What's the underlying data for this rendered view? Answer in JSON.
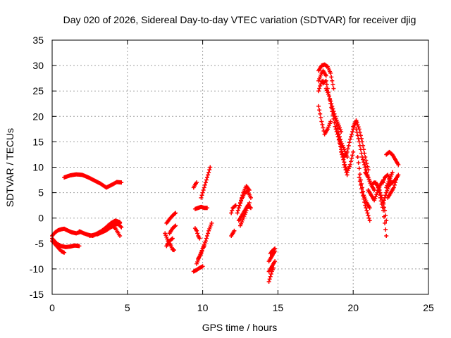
{
  "chart_data": {
    "type": "scatter",
    "title": "Day 020 of 2026, Sidereal Day-to-day VTEC variation (SDTVAR) for receiver djig",
    "xlabel": "GPS time / hours",
    "ylabel": "SDTVAR / TECUs",
    "xlim": [
      0,
      25
    ],
    "ylim": [
      -15,
      35
    ],
    "xticks": [
      0,
      5,
      10,
      15,
      20,
      25
    ],
    "yticks": [
      -15,
      -10,
      -5,
      0,
      5,
      10,
      15,
      20,
      25,
      30,
      35
    ],
    "grid": true,
    "marker": "plus",
    "color": "#ff0000",
    "series": [
      {
        "segments": [
          {
            "x": [
              0.8,
              1.2,
              1.6,
              2.0,
              2.4,
              2.8,
              3.2,
              3.6,
              4.0,
              4.3,
              4.6
            ],
            "y": [
              8.0,
              8.4,
              8.6,
              8.5,
              8.0,
              7.4,
              6.8,
              6.0,
              6.6,
              7.1,
              7.0
            ]
          },
          {
            "x": [
              0.0,
              0.2,
              0.4,
              0.6,
              0.8,
              1.0,
              1.3,
              1.6,
              1.9
            ],
            "y": [
              -3.5,
              -2.8,
              -2.4,
              -2.2,
              -2.1,
              -2.4,
              -2.8,
              -3.0,
              -2.7
            ]
          },
          {
            "x": [
              0.0,
              0.3,
              0.6,
              0.9,
              1.2,
              1.5,
              1.8
            ],
            "y": [
              -4.0,
              -5.0,
              -5.5,
              -5.7,
              -5.6,
              -5.4,
              -5.5
            ]
          },
          {
            "x": [
              0.0,
              0.3,
              0.6,
              0.8
            ],
            "y": [
              -4.5,
              -5.5,
              -6.5,
              -6.8
            ]
          },
          {
            "x": [
              1.8,
              2.1,
              2.4,
              2.7,
              3.0,
              3.3,
              3.6,
              3.9,
              4.2,
              4.5
            ],
            "y": [
              -2.6,
              -3.0,
              -3.3,
              -3.5,
              -3.0,
              -2.5,
              -1.8,
              -1.0,
              -0.5,
              -0.8
            ]
          },
          {
            "x": [
              2.5,
              2.9,
              3.3,
              3.6,
              3.9,
              4.2,
              4.5
            ],
            "y": [
              -3.5,
              -3.2,
              -2.8,
              -2.4,
              -1.8,
              -1.3,
              -1.0
            ]
          },
          {
            "x": [
              3.0,
              3.3,
              3.6,
              3.9,
              4.2,
              4.5
            ],
            "y": [
              -3.2,
              -2.8,
              -2.0,
              -1.3,
              -2.0,
              -3.5
            ]
          },
          {
            "x": [
              3.7,
              4.0,
              4.2,
              4.4,
              4.6
            ],
            "y": [
              -1.5,
              -1.0,
              -0.8,
              -1.2,
              -1.8
            ]
          },
          {
            "x": [
              7.5,
              7.7,
              7.9,
              8.0,
              8.1
            ],
            "y": [
              -3.0,
              -4.5,
              -5.5,
              -6.2,
              -6.3
            ]
          },
          {
            "x": [
              7.6,
              7.8,
              8.0,
              8.2
            ],
            "y": [
              -1.0,
              -0.2,
              0.5,
              1.0
            ]
          },
          {
            "x": [
              7.8,
              8.0,
              8.2
            ],
            "y": [
              -3.0,
              -2.0,
              -1.5
            ]
          },
          {
            "x": [
              7.6,
              7.8,
              8.0
            ],
            "y": [
              -5.5,
              -4.5,
              -4.0
            ]
          },
          {
            "x": [
              9.5,
              9.6,
              9.7,
              9.8
            ],
            "y": [
              -2.0,
              -2.5,
              -3.5,
              -4.0
            ]
          },
          {
            "x": [
              9.4,
              9.5,
              9.6
            ],
            "y": [
              6.0,
              6.6,
              7.0
            ]
          },
          {
            "x": [
              9.4,
              9.6,
              9.8,
              10.0
            ],
            "y": [
              -10.5,
              -10.2,
              -9.8,
              -9.5
            ]
          },
          {
            "x": [
              9.6,
              9.8,
              10.0,
              10.2,
              10.4,
              10.6
            ],
            "y": [
              -9.0,
              -7.5,
              -6.0,
              -4.5,
              -2.5,
              -1.0
            ]
          },
          {
            "x": [
              9.7,
              9.9,
              10.0,
              10.1
            ],
            "y": [
              -8.0,
              -7.0,
              -6.0,
              -5.5
            ]
          },
          {
            "x": [
              9.5,
              9.7,
              9.9,
              10.1,
              10.3
            ],
            "y": [
              1.8,
              2.0,
              2.2,
              2.0,
              2.0
            ]
          },
          {
            "x": [
              9.9,
              10.1,
              10.3,
              10.5
            ],
            "y": [
              4.0,
              6.0,
              8.0,
              10.0
            ]
          },
          {
            "x": [
              11.9,
              12.0,
              12.1
            ],
            "y": [
              -3.5,
              -3.0,
              -2.5
            ]
          },
          {
            "x": [
              11.9,
              12.0,
              12.2
            ],
            "y": [
              1.0,
              2.0,
              2.5
            ]
          },
          {
            "x": [
              12.3,
              12.5,
              12.7,
              12.9,
              13.1
            ],
            "y": [
              1.0,
              3.0,
              5.0,
              6.3,
              5.5
            ]
          },
          {
            "x": [
              12.4,
              12.6,
              12.8,
              13.0,
              13.2
            ],
            "y": [
              2.0,
              3.8,
              5.0,
              5.2,
              4.0
            ]
          },
          {
            "x": [
              12.4,
              12.6,
              12.8,
              13.0,
              13.2
            ],
            "y": [
              -0.5,
              0.5,
              1.5,
              2.5,
              2.0
            ]
          },
          {
            "x": [
              12.5,
              12.7,
              12.9,
              13.1
            ],
            "y": [
              -1.5,
              0.0,
              1.5,
              3.0
            ]
          },
          {
            "x": [
              14.4,
              14.5,
              14.6,
              14.7
            ],
            "y": [
              -12.5,
              -11.5,
              -10.5,
              -9.8
            ]
          },
          {
            "x": [
              14.4,
              14.6,
              14.8
            ],
            "y": [
              -8.5,
              -7.5,
              -6.5
            ]
          },
          {
            "x": [
              14.4,
              14.6,
              14.8
            ],
            "y": [
              -10.5,
              -9.5,
              -8.5
            ]
          },
          {
            "x": [
              14.5,
              14.6,
              14.8
            ],
            "y": [
              -7.0,
              -6.5,
              -6.0
            ]
          },
          {
            "x": [
              17.7,
              17.9,
              18.1,
              18.3,
              18.5,
              18.7
            ],
            "y": [
              29.0,
              30.0,
              30.2,
              29.8,
              28.5,
              25.5
            ]
          },
          {
            "x": [
              17.7,
              17.9,
              18.0,
              18.2
            ],
            "y": [
              27.0,
              28.5,
              29.0,
              28.0
            ]
          },
          {
            "x": [
              17.7,
              17.8,
              17.9,
              18.0
            ],
            "y": [
              25.0,
              26.0,
              26.8,
              27.0
            ]
          },
          {
            "x": [
              17.7,
              17.9,
              18.1,
              18.3,
              18.5
            ],
            "y": [
              22.0,
              19.0,
              16.5,
              17.5,
              19.0
            ]
          },
          {
            "x": [
              18.0,
              18.2,
              18.4,
              18.6,
              18.8,
              19.0,
              19.2
            ],
            "y": [
              26.5,
              27.0,
              24.0,
              22.0,
              20.0,
              18.5,
              17.0
            ]
          },
          {
            "x": [
              18.2,
              18.4,
              18.6,
              18.8,
              19.0,
              19.2
            ],
            "y": [
              25.5,
              24.0,
              21.0,
              18.0,
              16.0,
              14.0
            ]
          },
          {
            "x": [
              18.6,
              18.8,
              19.0,
              19.2,
              19.4,
              19.6
            ],
            "y": [
              21.5,
              19.5,
              17.0,
              15.0,
              13.5,
              12.0
            ]
          },
          {
            "x": [
              19.0,
              19.2,
              19.4,
              19.6,
              19.8,
              20.0,
              20.2
            ],
            "y": [
              16.0,
              13.5,
              12.0,
              13.0,
              15.5,
              17.5,
              19.0
            ]
          },
          {
            "x": [
              19.2,
              19.4,
              19.6,
              19.8,
              20.0
            ],
            "y": [
              13.0,
              11.0,
              9.0,
              10.5,
              13.0
            ]
          },
          {
            "x": [
              19.4,
              19.5,
              19.6
            ],
            "y": [
              10.5,
              9.5,
              8.5
            ]
          },
          {
            "x": [
              20.0,
              20.2,
              20.4,
              20.6,
              20.8,
              21.0
            ],
            "y": [
              18.0,
              19.2,
              17.5,
              15.0,
              12.0,
              9.5
            ]
          },
          {
            "x": [
              20.2,
              20.4,
              20.6,
              20.8,
              21.0,
              21.2,
              21.4
            ],
            "y": [
              17.5,
              15.0,
              12.0,
              10.0,
              8.0,
              6.5,
              5.5
            ]
          },
          {
            "x": [
              20.3,
              20.5,
              20.7,
              20.9,
              21.1
            ],
            "y": [
              12.0,
              7.5,
              4.5,
              3.0,
              2.0
            ]
          },
          {
            "x": [
              20.4,
              20.6,
              20.8,
              21.0,
              21.1
            ],
            "y": [
              8.0,
              5.0,
              2.5,
              0.5,
              -0.5
            ]
          },
          {
            "x": [
              20.8,
              21.0,
              21.2,
              21.4,
              21.6,
              21.8
            ],
            "y": [
              9.0,
              8.0,
              6.5,
              7.0,
              6.5,
              4.5
            ]
          },
          {
            "x": [
              21.0,
              21.2,
              21.4,
              21.6,
              21.8,
              22.0
            ],
            "y": [
              5.5,
              4.5,
              3.5,
              5.0,
              6.5,
              7.5
            ]
          },
          {
            "x": [
              21.5,
              21.7,
              21.9,
              22.1,
              22.2
            ],
            "y": [
              7.0,
              6.0,
              4.0,
              1.5,
              -0.5
            ]
          },
          {
            "x": [
              21.8,
              22.0,
              22.1,
              22.2
            ],
            "y": [
              4.0,
              1.5,
              -1.0,
              -3.5
            ]
          },
          {
            "x": [
              22.0,
              22.2,
              22.4,
              22.6,
              22.8,
              23.0
            ],
            "y": [
              3.0,
              5.0,
              6.5,
              7.0,
              7.5,
              8.5
            ]
          },
          {
            "x": [
              22.0,
              22.1,
              22.3,
              22.5
            ],
            "y": [
              7.0,
              8.0,
              8.5,
              7.0
            ]
          },
          {
            "x": [
              22.3,
              22.5,
              22.7,
              22.9
            ],
            "y": [
              4.0,
              5.0,
              6.0,
              8.0
            ]
          },
          {
            "x": [
              22.2,
              22.4,
              22.6,
              22.8,
              23.0
            ],
            "y": [
              12.5,
              13.0,
              12.5,
              11.5,
              10.5
            ]
          },
          {
            "x": [
              22.2,
              22.4,
              22.6
            ],
            "y": [
              6.0,
              7.5,
              9.0
            ]
          }
        ]
      }
    ]
  }
}
